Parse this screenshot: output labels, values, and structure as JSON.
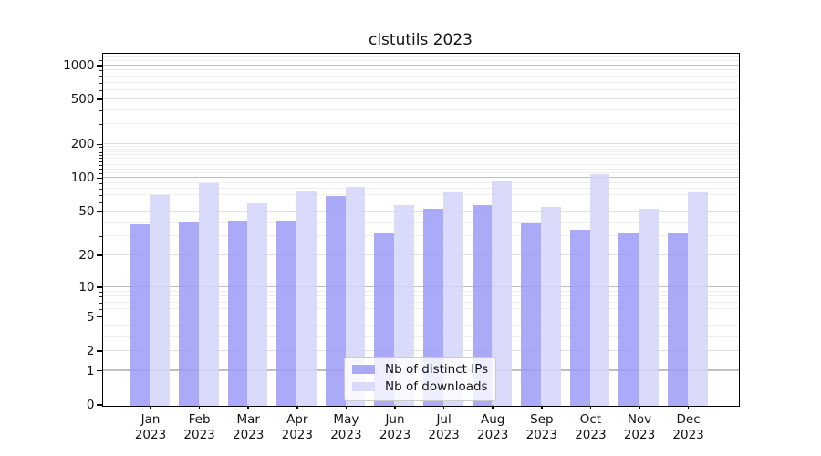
{
  "chart_data": {
    "type": "bar",
    "title": "clstutils 2023",
    "categories": [
      "Jan",
      "Feb",
      "Mar",
      "Apr",
      "May",
      "Jun",
      "Jul",
      "Aug",
      "Sep",
      "Oct",
      "Nov",
      "Dec"
    ],
    "tick_year": "2023",
    "series": [
      {
        "name": "Nb of distinct IPs",
        "color": "#9b9bf8",
        "values": [
          39,
          41,
          42,
          42,
          70,
          32,
          54,
          58,
          40,
          35,
          33,
          33
        ]
      },
      {
        "name": "Nb of downloads",
        "color": "#d3d3fa",
        "values": [
          71,
          91,
          60,
          78,
          85,
          58,
          77,
          94,
          56,
          110,
          54,
          75
        ]
      }
    ],
    "y_axis": {
      "scale": "log1p",
      "tick_labels": [
        0,
        1,
        2,
        5,
        10,
        20,
        50,
        100,
        200,
        500,
        1000
      ],
      "decade_lines": [
        1,
        10,
        100,
        1000
      ],
      "labeled_lines": [
        2,
        5,
        20,
        50,
        200,
        500
      ],
      "minor_gridlines": [
        3,
        4,
        6,
        7,
        8,
        9,
        30,
        40,
        60,
        70,
        80,
        90,
        110,
        120,
        130,
        140,
        150,
        160,
        170,
        180,
        190,
        300,
        400,
        600,
        700,
        800,
        900,
        1100,
        1200
      ],
      "max": 1285
    },
    "legend": {
      "position": "lower center"
    },
    "grid": true,
    "colors": {
      "decade_gridline": "#bfbfbf",
      "labeled_gridline": "#e0e0e0",
      "minor_gridline": "#eeeeee",
      "axis": "#000000",
      "text": "#141414"
    }
  }
}
